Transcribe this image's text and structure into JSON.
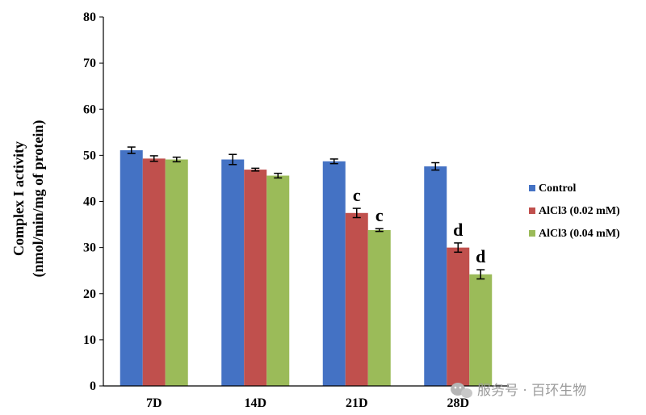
{
  "chart_data": {
    "type": "bar",
    "title": "",
    "xlabel": "",
    "ylabel_line1": "Complex I activity",
    "ylabel_line2": "(nmol/min/mg of protein)",
    "ylim": [
      0,
      80
    ],
    "yticks": [
      0,
      10,
      20,
      30,
      40,
      50,
      60,
      70,
      80
    ],
    "ytick_labels": [
      "0",
      "10",
      "20",
      "30",
      "40",
      "50",
      "60",
      "70",
      "80"
    ],
    "grid": false,
    "legend_position": "right",
    "categories": [
      "7D",
      "14D",
      "21D",
      "28D"
    ],
    "series": [
      {
        "name": "Control",
        "color": "#4472c4",
        "values": [
          51.1,
          49.1,
          48.7,
          47.6
        ],
        "errors": [
          0.7,
          1.1,
          0.5,
          0.8
        ],
        "annotations": [
          "",
          "",
          "",
          ""
        ]
      },
      {
        "name": "AlCl3 (0.02 mM)",
        "color": "#c0504d",
        "values": [
          49.3,
          46.9,
          37.5,
          30.0
        ],
        "errors": [
          0.6,
          0.3,
          1.0,
          1.0
        ],
        "annotations": [
          "",
          "",
          "c",
          "d"
        ]
      },
      {
        "name": "AlCl3 (0.04 mM)",
        "color": "#9bbb59",
        "values": [
          49.1,
          45.6,
          33.8,
          24.2
        ],
        "errors": [
          0.5,
          0.5,
          0.3,
          1.0
        ],
        "annotations": [
          "",
          "",
          "c",
          "d"
        ]
      }
    ]
  },
  "watermark": {
    "icon": "wechat-icon",
    "text": "服务号 · 百环生物"
  }
}
